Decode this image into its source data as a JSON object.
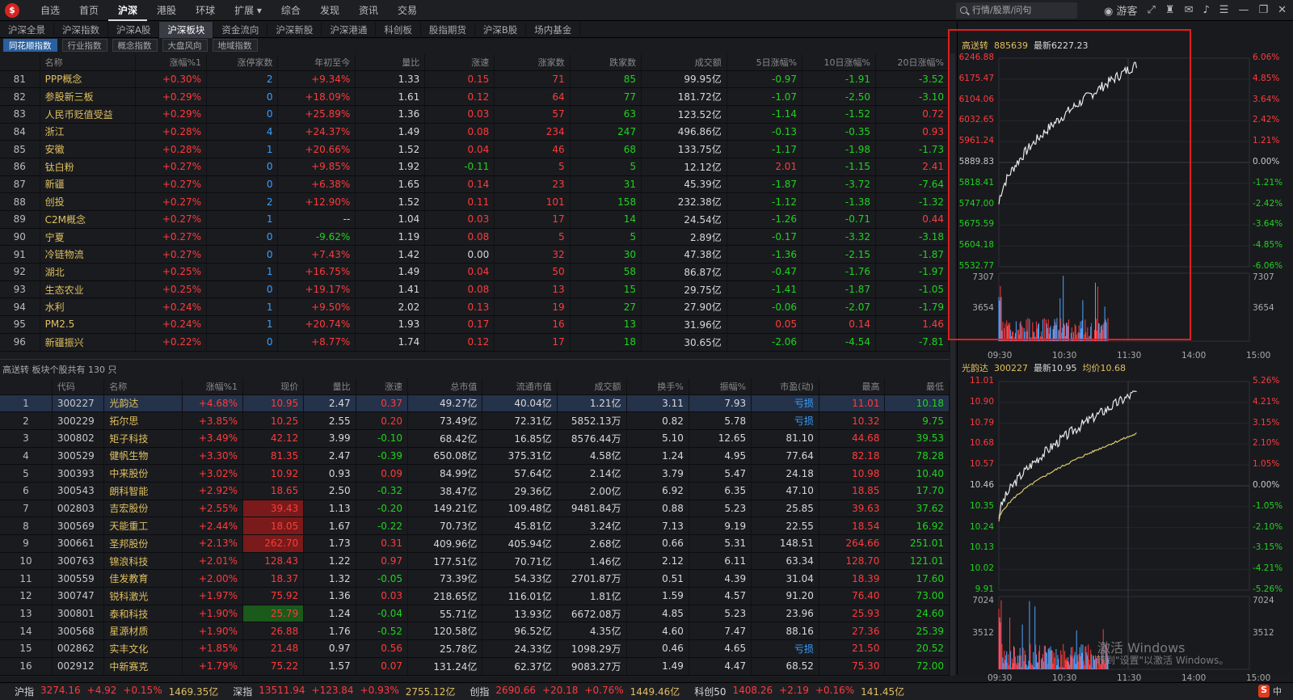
{
  "topnav": {
    "items": [
      "自选",
      "首页",
      "沪深",
      "港股",
      "环球",
      "扩展 ▾",
      "综合",
      "发现",
      "资讯",
      "交易"
    ],
    "active": 2
  },
  "search": {
    "placeholder": "行情/股票/问句"
  },
  "tray": {
    "user": "游客"
  },
  "subtabs": {
    "items": [
      "沪深全景",
      "沪深指数",
      "沪深A股",
      "沪深板块",
      "资金流向",
      "沪深新股",
      "沪深港通",
      "科创板",
      "股指期货",
      "沪深B股",
      "场内基金"
    ],
    "active": 3
  },
  "filtertabs": {
    "items": [
      "同花顺指数",
      "行业指数",
      "概念指数",
      "大盘风向",
      "地域指数"
    ],
    "active": 0
  },
  "sector_table": {
    "headers": [
      "",
      "名称",
      "涨幅%1",
      "涨停家数",
      "年初至今",
      "量比",
      "涨速",
      "涨家数",
      "跌家数",
      "成交额",
      "5日涨幅%",
      "10日涨幅%",
      "20日涨幅%"
    ],
    "rows": [
      [
        "81",
        "PPP概念",
        "+0.30%",
        "2",
        "+9.34%",
        "1.33",
        "0.15",
        "71",
        "85",
        "99.95亿",
        "-0.97",
        "-1.91",
        "-3.52"
      ],
      [
        "82",
        "参股新三板",
        "+0.29%",
        "0",
        "+18.09%",
        "1.61",
        "0.12",
        "64",
        "77",
        "181.72亿",
        "-1.07",
        "-2.50",
        "-3.10"
      ],
      [
        "83",
        "人民币贬值受益",
        "+0.29%",
        "0",
        "+25.89%",
        "1.36",
        "0.03",
        "57",
        "63",
        "123.52亿",
        "-1.14",
        "-1.52",
        "0.72"
      ],
      [
        "84",
        "浙江",
        "+0.28%",
        "4",
        "+24.37%",
        "1.49",
        "0.08",
        "234",
        "247",
        "496.86亿",
        "-0.13",
        "-0.35",
        "0.93"
      ],
      [
        "85",
        "安徽",
        "+0.28%",
        "1",
        "+20.66%",
        "1.52",
        "0.04",
        "46",
        "68",
        "133.75亿",
        "-1.17",
        "-1.98",
        "-1.73"
      ],
      [
        "86",
        "钛白粉",
        "+0.27%",
        "0",
        "+9.85%",
        "1.92",
        "-0.11",
        "5",
        "5",
        "12.12亿",
        "2.01",
        "-1.15",
        "2.41"
      ],
      [
        "87",
        "新疆",
        "+0.27%",
        "0",
        "+6.38%",
        "1.65",
        "0.14",
        "23",
        "31",
        "45.39亿",
        "-1.87",
        "-3.72",
        "-7.64"
      ],
      [
        "88",
        "创投",
        "+0.27%",
        "2",
        "+12.90%",
        "1.52",
        "0.11",
        "101",
        "158",
        "232.38亿",
        "-1.12",
        "-1.38",
        "-1.32"
      ],
      [
        "89",
        "C2M概念",
        "+0.27%",
        "1",
        "--",
        "1.04",
        "0.03",
        "17",
        "14",
        "24.54亿",
        "-1.26",
        "-0.71",
        "0.44"
      ],
      [
        "90",
        "宁夏",
        "+0.27%",
        "0",
        "-9.62%",
        "1.19",
        "0.08",
        "5",
        "5",
        "2.89亿",
        "-0.17",
        "-3.32",
        "-3.18"
      ],
      [
        "91",
        "冷链物流",
        "+0.27%",
        "0",
        "+7.43%",
        "1.42",
        "0.00",
        "32",
        "30",
        "47.38亿",
        "-1.36",
        "-2.15",
        "-1.87"
      ],
      [
        "92",
        "湖北",
        "+0.25%",
        "1",
        "+16.75%",
        "1.49",
        "0.04",
        "50",
        "58",
        "86.87亿",
        "-0.47",
        "-1.76",
        "-1.97"
      ],
      [
        "93",
        "生态农业",
        "+0.25%",
        "0",
        "+19.17%",
        "1.41",
        "0.08",
        "13",
        "15",
        "29.75亿",
        "-1.41",
        "-1.87",
        "-1.05"
      ],
      [
        "94",
        "水利",
        "+0.24%",
        "1",
        "+9.50%",
        "2.02",
        "0.13",
        "19",
        "27",
        "27.90亿",
        "-0.06",
        "-2.07",
        "-1.79"
      ],
      [
        "95",
        "PM2.5",
        "+0.24%",
        "1",
        "+20.74%",
        "1.93",
        "0.17",
        "16",
        "13",
        "31.96亿",
        "0.05",
        "0.14",
        "1.46"
      ],
      [
        "96",
        "新疆振兴",
        "+0.22%",
        "0",
        "+8.77%",
        "1.74",
        "0.12",
        "17",
        "18",
        "30.65亿",
        "-2.06",
        "-4.54",
        "-7.81"
      ]
    ]
  },
  "constituents_title": "高送转  板块个股共有 130 只",
  "stock_table": {
    "headers": [
      "",
      "代码",
      "名称",
      "涨幅%1",
      "现价",
      "量比",
      "涨速",
      "总市值",
      "流通市值",
      "成交额",
      "换手%",
      "振幅%",
      "市盈(动)",
      "最高",
      "最低"
    ],
    "rows": [
      [
        "1",
        "300227",
        "光韵达",
        "+4.68%",
        "10.95",
        "2.47",
        "0.37",
        "49.27亿",
        "40.04亿",
        "1.21亿",
        "3.11",
        "7.93",
        "亏损",
        "11.01",
        "10.18"
      ],
      [
        "2",
        "300229",
        "拓尔思",
        "+3.85%",
        "10.25",
        "2.55",
        "0.20",
        "73.49亿",
        "72.31亿",
        "5852.13万",
        "0.82",
        "5.78",
        "亏损",
        "10.32",
        "9.75"
      ],
      [
        "3",
        "300802",
        "矩子科技",
        "+3.49%",
        "42.12",
        "3.99",
        "-0.10",
        "68.42亿",
        "16.85亿",
        "8576.44万",
        "5.10",
        "12.65",
        "81.10",
        "44.68",
        "39.53"
      ],
      [
        "4",
        "300529",
        "健帆生物",
        "+3.30%",
        "81.35",
        "2.47",
        "-0.39",
        "650.08亿",
        "375.31亿",
        "4.58亿",
        "1.24",
        "4.95",
        "77.64",
        "82.18",
        "78.28"
      ],
      [
        "5",
        "300393",
        "中来股份",
        "+3.02%",
        "10.92",
        "0.93",
        "0.09",
        "84.99亿",
        "57.64亿",
        "2.14亿",
        "3.79",
        "5.47",
        "24.18",
        "10.98",
        "10.40"
      ],
      [
        "6",
        "300543",
        "朗科智能",
        "+2.92%",
        "18.65",
        "2.50",
        "-0.32",
        "38.47亿",
        "29.36亿",
        "2.00亿",
        "6.92",
        "6.35",
        "47.10",
        "18.85",
        "17.70"
      ],
      [
        "7",
        "002803",
        "吉宏股份",
        "+2.55%",
        "39.43",
        "1.13",
        "-0.20",
        "149.21亿",
        "109.48亿",
        "9481.84万",
        "0.88",
        "5.23",
        "25.85",
        "39.63",
        "37.62"
      ],
      [
        "8",
        "300569",
        "天能重工",
        "+2.44%",
        "18.05",
        "1.67",
        "-0.22",
        "70.73亿",
        "45.81亿",
        "3.24亿",
        "7.13",
        "9.19",
        "22.55",
        "18.54",
        "16.92"
      ],
      [
        "9",
        "300661",
        "圣邦股份",
        "+2.13%",
        "262.70",
        "1.73",
        "0.31",
        "409.96亿",
        "405.94亿",
        "2.68亿",
        "0.66",
        "5.31",
        "148.51",
        "264.66",
        "251.01"
      ],
      [
        "10",
        "300763",
        "锦浪科技",
        "+2.01%",
        "128.43",
        "1.22",
        "0.97",
        "177.51亿",
        "70.71亿",
        "1.46亿",
        "2.12",
        "6.11",
        "63.34",
        "128.70",
        "121.01"
      ],
      [
        "11",
        "300559",
        "佳发教育",
        "+2.00%",
        "18.37",
        "1.32",
        "-0.05",
        "73.39亿",
        "54.33亿",
        "2701.87万",
        "0.51",
        "4.39",
        "31.04",
        "18.39",
        "17.60"
      ],
      [
        "12",
        "300747",
        "锐科激光",
        "+1.97%",
        "75.92",
        "1.36",
        "0.03",
        "218.65亿",
        "116.01亿",
        "1.81亿",
        "1.59",
        "4.57",
        "91.20",
        "76.40",
        "73.00"
      ],
      [
        "13",
        "300801",
        "泰和科技",
        "+1.90%",
        "25.79",
        "1.24",
        "-0.04",
        "55.71亿",
        "13.93亿",
        "6672.08万",
        "4.85",
        "5.23",
        "23.96",
        "25.93",
        "24.60"
      ],
      [
        "14",
        "300568",
        "星源材质",
        "+1.90%",
        "26.88",
        "1.76",
        "-0.52",
        "120.58亿",
        "96.52亿",
        "4.35亿",
        "4.60",
        "7.47",
        "88.16",
        "27.36",
        "25.39"
      ],
      [
        "15",
        "002862",
        "实丰文化",
        "+1.85%",
        "21.48",
        "0.97",
        "0.56",
        "25.78亿",
        "24.33亿",
        "1098.29万",
        "0.46",
        "4.65",
        "亏损",
        "21.50",
        "20.52"
      ],
      [
        "16",
        "002912",
        "中新赛克",
        "+1.79%",
        "75.22",
        "1.57",
        "0.07",
        "131.24亿",
        "62.37亿",
        "9083.27万",
        "1.49",
        "4.47",
        "68.52",
        "75.30",
        "72.00"
      ]
    ]
  },
  "chart1": {
    "title_name": "高送转",
    "title_code": "885639",
    "title_latest": "最新6227.23",
    "left_axis": [
      "6246.88",
      "6175.47",
      "6104.06",
      "6032.65",
      "5961.24",
      "5889.83",
      "5818.41",
      "5747.00",
      "5675.59",
      "5604.18",
      "5532.77"
    ],
    "right_axis": [
      "6.06%",
      "4.85%",
      "3.64%",
      "2.42%",
      "1.21%",
      "0.00%",
      "-1.21%",
      "-2.42%",
      "-3.64%",
      "-4.85%",
      "-6.06%"
    ],
    "vol_axis": [
      "7307",
      "3654"
    ],
    "time_axis": [
      "09:30",
      "10:30",
      "11:30",
      "14:00",
      "15:00"
    ]
  },
  "chart2": {
    "title_name": "光韵达",
    "title_code": "300227",
    "title_latest": "最新10.95",
    "title_avg": "均价10.68",
    "left_axis": [
      "11.01",
      "10.90",
      "10.79",
      "10.68",
      "10.57",
      "10.46",
      "10.35",
      "10.24",
      "10.13",
      "10.02",
      "9.91"
    ],
    "right_axis": [
      "5.26%",
      "4.21%",
      "3.15%",
      "2.10%",
      "1.05%",
      "0.00%",
      "-1.05%",
      "-2.10%",
      "-3.15%",
      "-4.21%",
      "-5.26%"
    ],
    "vol_axis": [
      "7024",
      "3512"
    ],
    "time_axis": [
      "09:30",
      "10:30",
      "11:30",
      "14:00",
      "15:00"
    ]
  },
  "statusbar": [
    {
      "name": "沪指",
      "price": "3274.16",
      "chg": "+4.92",
      "pct": "+0.15%",
      "amt": "1469.35亿"
    },
    {
      "name": "深指",
      "price": "13511.94",
      "chg": "+123.84",
      "pct": "+0.93%",
      "amt": "2755.12亿"
    },
    {
      "name": "创指",
      "price": "2690.66",
      "chg": "+20.18",
      "pct": "+0.76%",
      "amt": "1449.46亿"
    },
    {
      "name": "科创50",
      "price": "1408.26",
      "chg": "+2.19",
      "pct": "+0.16%",
      "amt": "141.45亿"
    }
  ],
  "watermark": {
    "line1": "激活 Windows",
    "line2": "转到\"设置\"以激活 Windows。"
  },
  "ime": {
    "label": "中"
  }
}
